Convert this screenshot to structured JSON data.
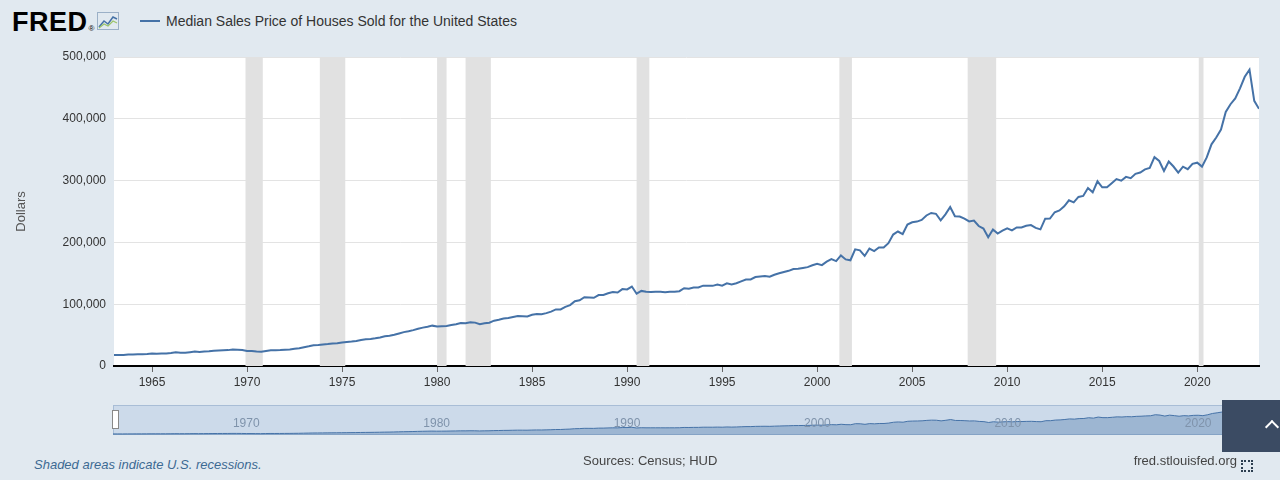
{
  "header": {
    "logo": "FRED",
    "logo_mark": "®"
  },
  "chart_data": {
    "type": "line",
    "ylabel": "Dollars",
    "x": [
      1963,
      1963.25,
      1963.5,
      1963.75,
      1964,
      1964.25,
      1964.5,
      1964.75,
      1965,
      1965.25,
      1965.5,
      1965.75,
      1966,
      1966.25,
      1966.5,
      1966.75,
      1967,
      1967.25,
      1967.5,
      1967.75,
      1968,
      1968.25,
      1968.5,
      1968.75,
      1969,
      1969.25,
      1969.5,
      1969.75,
      1970,
      1970.25,
      1970.5,
      1970.75,
      1971,
      1971.25,
      1971.5,
      1971.75,
      1972,
      1972.25,
      1972.5,
      1972.75,
      1973,
      1973.25,
      1973.5,
      1973.75,
      1974,
      1974.25,
      1974.5,
      1974.75,
      1975,
      1975.25,
      1975.5,
      1975.75,
      1976,
      1976.25,
      1976.5,
      1976.75,
      1977,
      1977.25,
      1977.5,
      1977.75,
      1978,
      1978.25,
      1978.5,
      1978.75,
      1979,
      1979.25,
      1979.5,
      1979.75,
      1980,
      1980.25,
      1980.5,
      1980.75,
      1981,
      1981.25,
      1981.5,
      1981.75,
      1982,
      1982.25,
      1982.5,
      1982.75,
      1983,
      1983.25,
      1983.5,
      1983.75,
      1984,
      1984.25,
      1984.5,
      1984.75,
      1985,
      1985.25,
      1985.5,
      1985.75,
      1986,
      1986.25,
      1986.5,
      1986.75,
      1987,
      1987.25,
      1987.5,
      1987.75,
      1988,
      1988.25,
      1988.5,
      1988.75,
      1989,
      1989.25,
      1989.5,
      1989.75,
      1990,
      1990.25,
      1990.5,
      1990.75,
      1991,
      1991.25,
      1991.5,
      1991.75,
      1992,
      1992.25,
      1992.5,
      1992.75,
      1993,
      1993.25,
      1993.5,
      1993.75,
      1994,
      1994.25,
      1994.5,
      1994.75,
      1995,
      1995.25,
      1995.5,
      1995.75,
      1996,
      1996.25,
      1996.5,
      1996.75,
      1997,
      1997.25,
      1997.5,
      1997.75,
      1998,
      1998.25,
      1998.5,
      1998.75,
      1999,
      1999.25,
      1999.5,
      1999.75,
      2000,
      2000.25,
      2000.5,
      2000.75,
      2001,
      2001.25,
      2001.5,
      2001.75,
      2002,
      2002.25,
      2002.5,
      2002.75,
      2003,
      2003.25,
      2003.5,
      2003.75,
      2004,
      2004.25,
      2004.5,
      2004.75,
      2005,
      2005.25,
      2005.5,
      2005.75,
      2006,
      2006.25,
      2006.5,
      2006.75,
      2007,
      2007.25,
      2007.5,
      2007.75,
      2008,
      2008.25,
      2008.5,
      2008.75,
      2009,
      2009.25,
      2009.5,
      2009.75,
      2010,
      2010.25,
      2010.5,
      2010.75,
      2011,
      2011.25,
      2011.5,
      2011.75,
      2012,
      2012.25,
      2012.5,
      2012.75,
      2013,
      2013.25,
      2013.5,
      2013.75,
      2014,
      2014.25,
      2014.5,
      2014.75,
      2015,
      2015.25,
      2015.5,
      2015.75,
      2016,
      2016.25,
      2016.5,
      2016.75,
      2017,
      2017.25,
      2017.5,
      2017.75,
      2018,
      2018.25,
      2018.5,
      2018.75,
      2019,
      2019.25,
      2019.5,
      2019.75,
      2020,
      2020.25,
      2020.5,
      2020.75,
      2021,
      2021.25,
      2021.5,
      2021.75,
      2022,
      2022.25,
      2022.5,
      2022.75,
      2023,
      2023.25
    ],
    "series": [
      {
        "name": "Median Sales Price of Houses Sold for the United States",
        "color": "#4572a7",
        "values": [
          17800,
          18000,
          17900,
          18500,
          18500,
          18900,
          18900,
          19400,
          20200,
          19800,
          20200,
          20300,
          21000,
          22100,
          21500,
          21400,
          22300,
          23300,
          22500,
          23300,
          23700,
          24700,
          25100,
          25600,
          25700,
          26700,
          26400,
          26000,
          24200,
          24300,
          23400,
          22900,
          24300,
          25600,
          25300,
          25700,
          26400,
          26800,
          27800,
          28600,
          30400,
          31800,
          33400,
          34000,
          34800,
          35500,
          36400,
          36800,
          38000,
          38800,
          39600,
          40600,
          42100,
          43200,
          43800,
          44800,
          46200,
          48000,
          48900,
          50600,
          52700,
          54800,
          56100,
          58000,
          60400,
          62100,
          63600,
          65300,
          63800,
          64300,
          64900,
          66500,
          67600,
          69400,
          69200,
          70700,
          70200,
          67600,
          69300,
          70100,
          73300,
          74700,
          76800,
          77600,
          79200,
          80800,
          80700,
          80200,
          82800,
          84300,
          83800,
          85600,
          88000,
          91600,
          91500,
          95600,
          98500,
          104700,
          106300,
          111400,
          111000,
          110400,
          114800,
          115000,
          117800,
          119600,
          119000,
          124400,
          123900,
          128600,
          117000,
          121500,
          120000,
          119900,
          120000,
          120000,
          119500,
          120000,
          120000,
          121000,
          125800,
          125200,
          127000,
          127000,
          130000,
          130000,
          129700,
          132000,
          130000,
          133900,
          132000,
          134000,
          137000,
          139900,
          140000,
          144000,
          145000,
          145800,
          144500,
          147600,
          150000,
          152200,
          154000,
          157000,
          157400,
          158700,
          160000,
          163000,
          165300,
          163200,
          168800,
          172900,
          169800,
          179000,
          172500,
          171100,
          188700,
          187200,
          178100,
          190100,
          186000,
          191800,
          191900,
          198800,
          212700,
          217600,
          213500,
          228800,
          232500,
          233700,
          236400,
          243600,
          247700,
          246300,
          235600,
          245400,
          257400,
          242200,
          241800,
          238400,
          233900,
          235300,
          226500,
          222500,
          208400,
          220900,
          214300,
          219000,
          222900,
          219500,
          224100,
          224300,
          226900,
          228100,
          223500,
          221100,
          238400,
          238700,
          248800,
          251700,
          258400,
          268100,
          264800,
          273600,
          275200,
          288000,
          281000,
          298900,
          289200,
          289100,
          295800,
          302500,
          299800,
          306000,
          303800,
          310900,
          313100,
          318200,
          320500,
          337900,
          331800,
          315600,
          330900,
          322800,
          313000,
          322500,
          318400,
          327100,
          329000,
          322600,
          337500,
          358700,
          369800,
          382600,
          411200,
          423600,
          433100,
          449300,
          468000,
          479500,
          429000,
          416100
        ]
      }
    ],
    "xlim": [
      1963,
      2023.25
    ],
    "xticks": [
      1965,
      1970,
      1975,
      1980,
      1985,
      1990,
      1995,
      2000,
      2005,
      2010,
      2015,
      2020
    ],
    "ylim": [
      0,
      500000
    ],
    "yticks": [
      0,
      {
        "value": 100000,
        "label": "100,000"
      },
      {
        "value": 200000,
        "label": "200,000"
      },
      {
        "value": 300000,
        "label": "300,000"
      },
      {
        "value": 400000,
        "label": "400,000"
      },
      {
        "value": 500000,
        "label": "500,000"
      }
    ],
    "grid": true,
    "legend": "top-left",
    "recessions": [
      [
        1969.92,
        1970.83
      ],
      [
        1973.83,
        1975.17
      ],
      [
        1980.0,
        1980.5
      ],
      [
        1981.5,
        1982.83
      ],
      [
        1990.5,
        1991.17
      ],
      [
        2001.17,
        2001.83
      ],
      [
        2007.92,
        2009.42
      ],
      [
        2020.08,
        2020.33
      ]
    ]
  },
  "navigator": {
    "xticks": [
      1970,
      1980,
      1990,
      2000,
      2010,
      2020
    ]
  },
  "footer": {
    "note": "Shaded areas indicate U.S. recessions.",
    "source": "Sources: Census; HUD",
    "site": "fred.stlouisfed.org"
  }
}
